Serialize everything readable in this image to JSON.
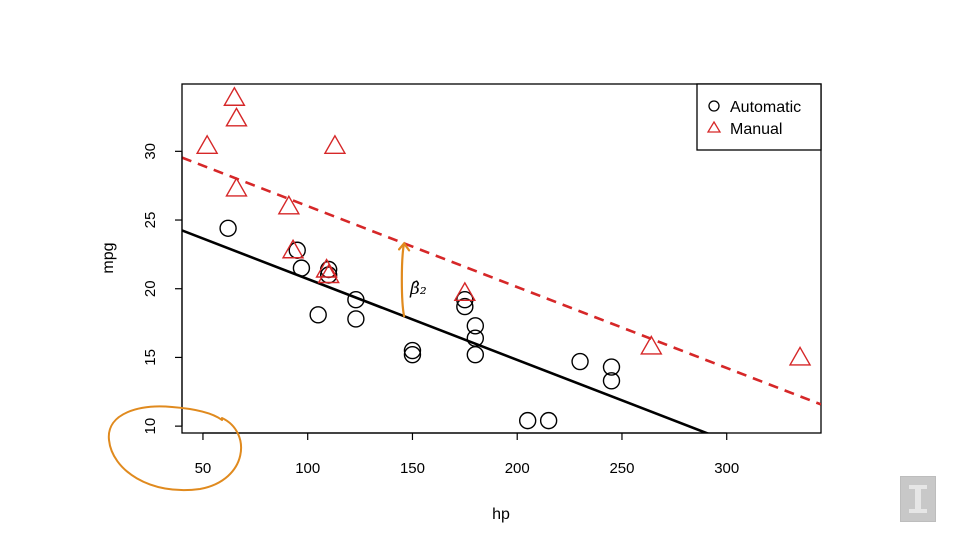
{
  "chart_data": {
    "type": "scatter",
    "xlabel": "hp",
    "ylabel": "mpg",
    "xlim": [
      40,
      345
    ],
    "ylim": [
      9.5,
      34.9
    ],
    "x_ticks": [
      50,
      100,
      150,
      200,
      250,
      300
    ],
    "y_ticks": [
      10,
      15,
      20,
      25,
      30
    ],
    "legend_position": "top-right",
    "grid": false,
    "series": [
      {
        "name": "Automatic",
        "marker": "circle",
        "color": "#000000",
        "points": [
          [
            62,
            24.4
          ],
          [
            95,
            22.8
          ],
          [
            97,
            21.5
          ],
          [
            105,
            18.1
          ],
          [
            110,
            21.4
          ],
          [
            110,
            21.0
          ],
          [
            123,
            19.2
          ],
          [
            123,
            17.8
          ],
          [
            150,
            15.5
          ],
          [
            150,
            15.2
          ],
          [
            175,
            18.7
          ],
          [
            175,
            19.2
          ],
          [
            180,
            17.3
          ],
          [
            180,
            16.4
          ],
          [
            180,
            15.2
          ],
          [
            205,
            10.4
          ],
          [
            215,
            10.4
          ],
          [
            230,
            14.7
          ],
          [
            245,
            14.3
          ],
          [
            245,
            13.3
          ]
        ]
      },
      {
        "name": "Manual",
        "marker": "triangle",
        "color": "#d62728",
        "points": [
          [
            52,
            30.4
          ],
          [
            65,
            33.9
          ],
          [
            66,
            32.4
          ],
          [
            66,
            27.3
          ],
          [
            91,
            26.0
          ],
          [
            93,
            22.8
          ],
          [
            109,
            21.4
          ],
          [
            110,
            21.0
          ],
          [
            113,
            30.4
          ],
          [
            175,
            19.7
          ],
          [
            264,
            15.8
          ],
          [
            335,
            15.0
          ]
        ]
      }
    ],
    "fit_lines": [
      {
        "series": "Automatic",
        "intercept": 26.6,
        "slope": -0.0589,
        "color": "#000000",
        "style": "solid"
      },
      {
        "series": "Manual",
        "intercept": 31.9,
        "slope": -0.0589,
        "color": "#d62728",
        "style": "dashed"
      }
    ],
    "annotations": [
      {
        "type": "arrow",
        "x": 146,
        "y_from": 18.0,
        "y_to": 23.3,
        "color": "#e08a1e"
      },
      {
        "type": "text",
        "text": "β̂₂",
        "color": "#e08a1e"
      },
      {
        "type": "circle-highlight",
        "around": "lower-left corner",
        "color": "#e08a1e"
      }
    ]
  }
}
